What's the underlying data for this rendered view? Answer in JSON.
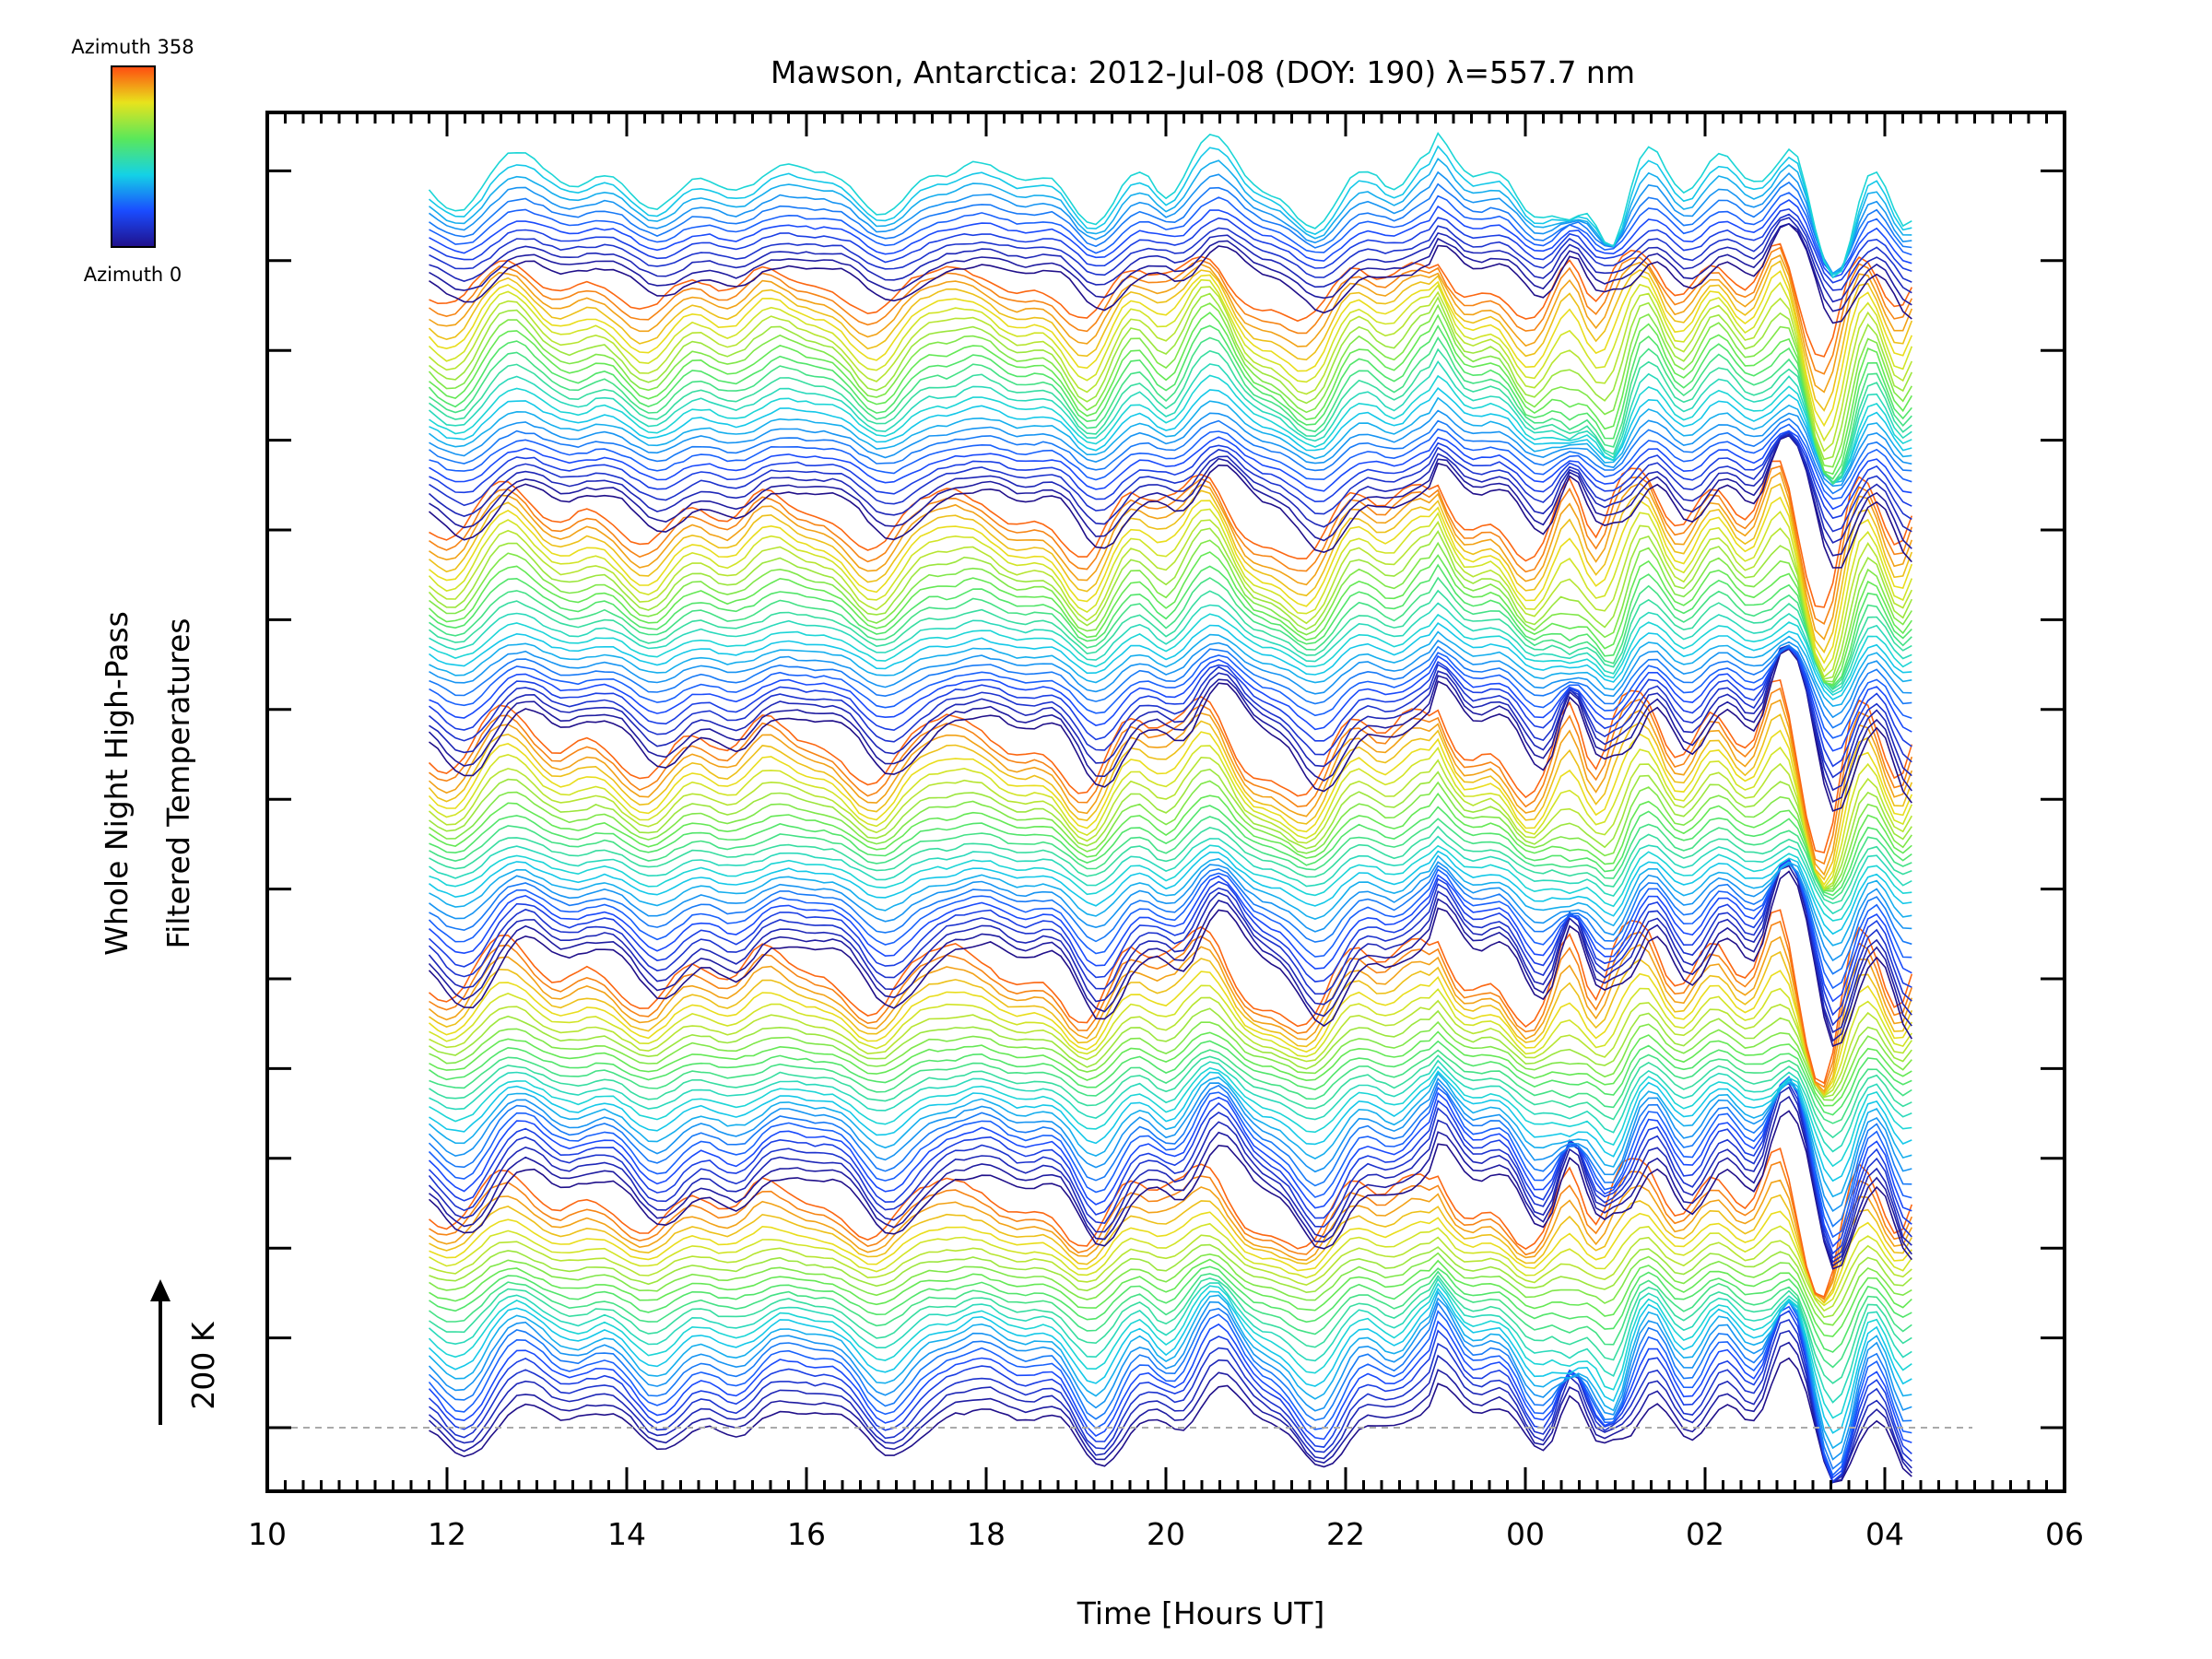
{
  "chart_data": {
    "type": "line",
    "title": "Mawson, Antarctica: 2012-Jul-08 (DOY: 190) λ=557.7 nm",
    "xlabel": "Time [Hours UT]",
    "ylabel_line1": "Whole Night High-Pass",
    "ylabel_line2": "Filtered Temperatures",
    "xlim_hours": [
      10,
      30
    ],
    "x_tick_labels": [
      "10",
      "12",
      "14",
      "16",
      "18",
      "20",
      "22",
      "00",
      "02",
      "04",
      "06"
    ],
    "scale_label": "200 K",
    "colorbar": {
      "top_label": "Azimuth 358",
      "bottom_label": "Azimuth 0"
    },
    "series_count": 142,
    "x_start_hour": 11.8,
    "x_end_hour": 28.3,
    "colormap": [
      "#20108a",
      "#1a4cff",
      "#14d2e6",
      "#5ae85a",
      "#e8e31c",
      "#ff4a10"
    ],
    "baseline_style": "dashed",
    "grid": false
  }
}
